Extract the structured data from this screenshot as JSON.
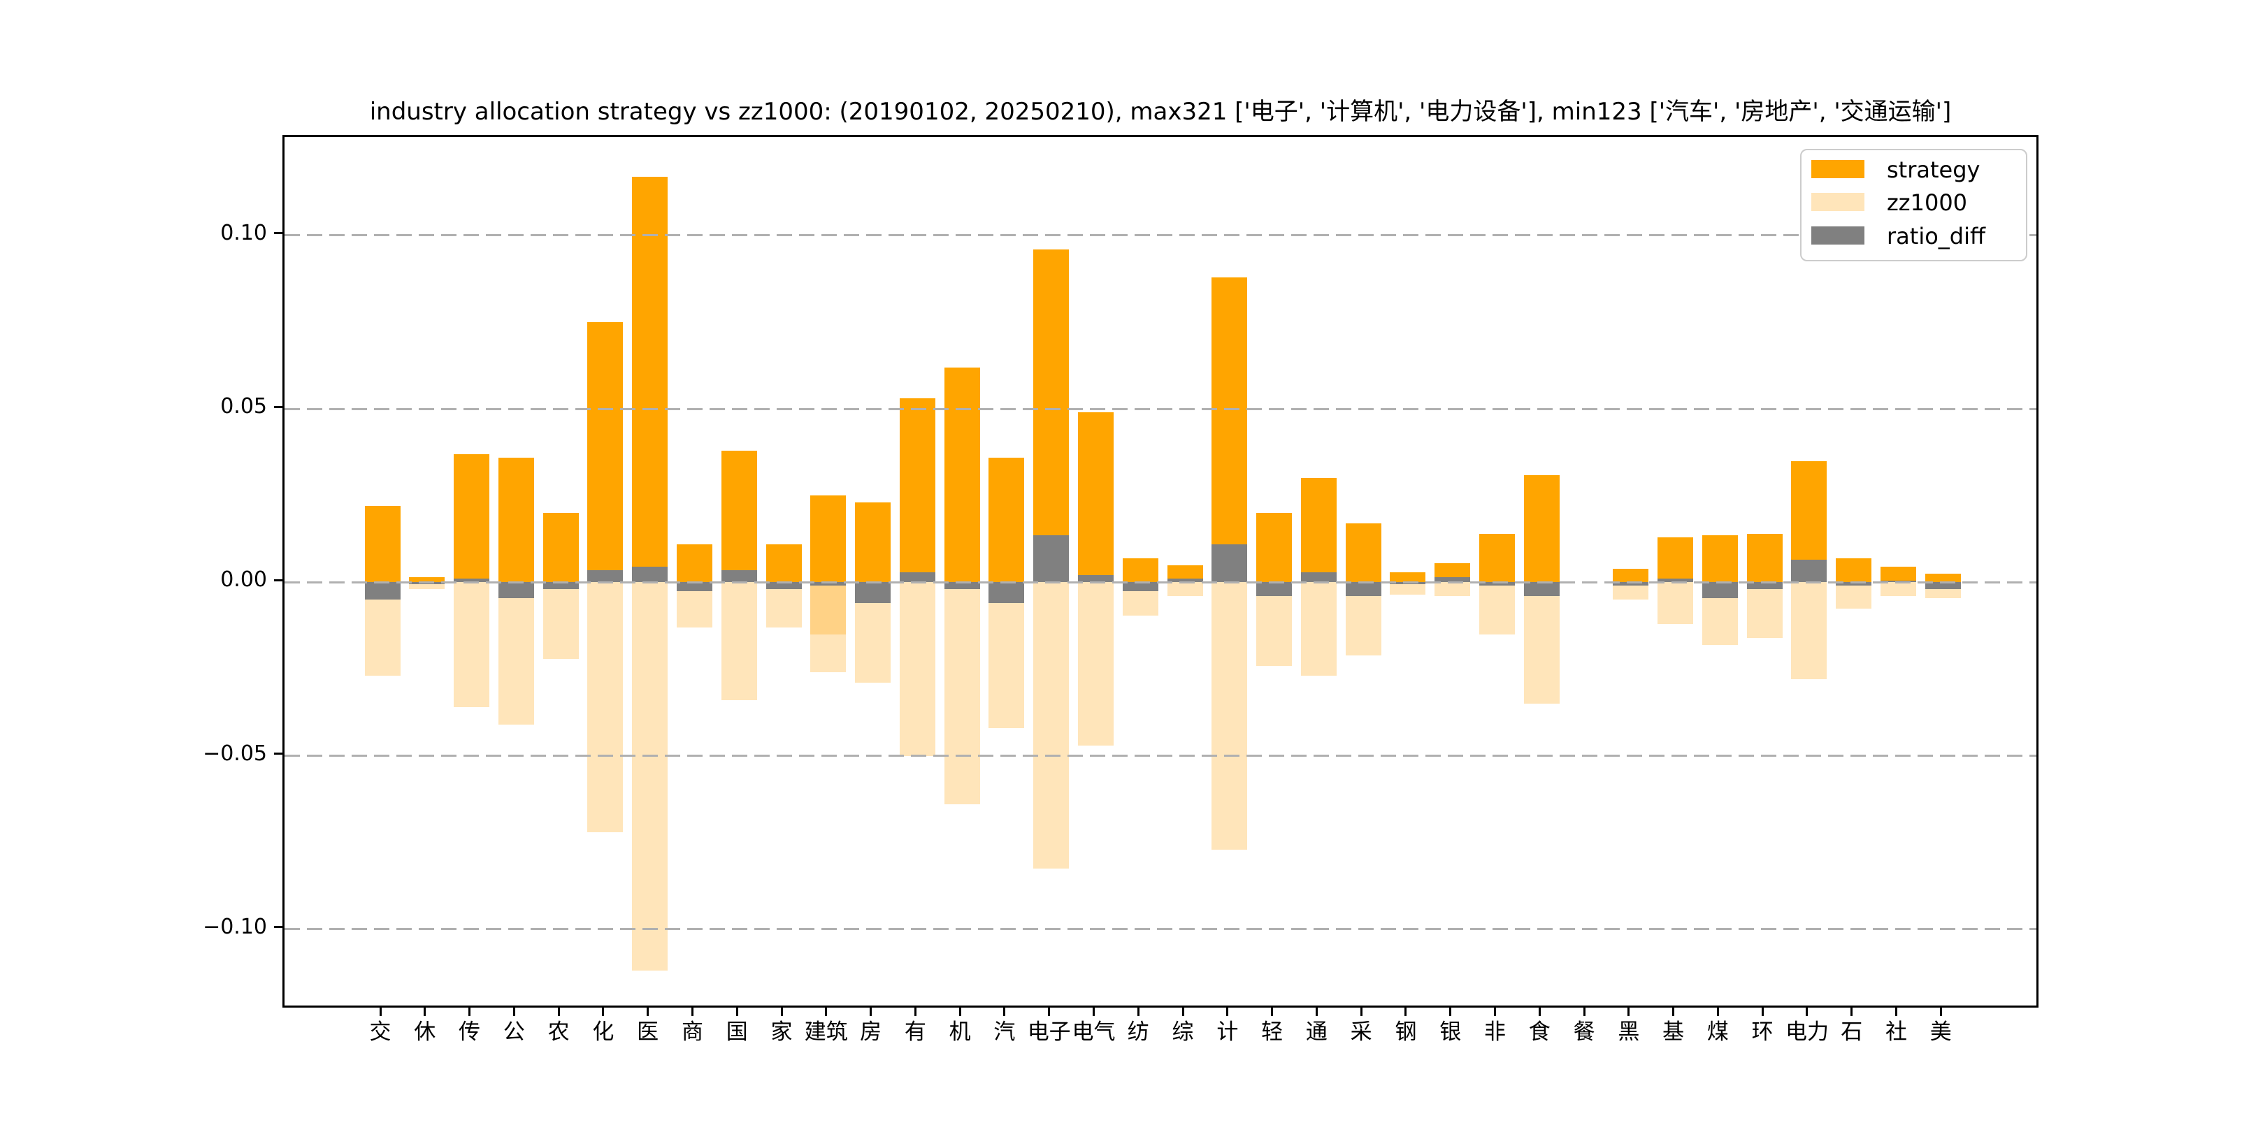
{
  "chart_data": {
    "type": "bar",
    "title": "industry allocation strategy vs zz1000: (20190102, 20250210), max321 ['电子', '计算机', '电力设备'], min123 ['汽车', '房地产', '交通运输']",
    "categories": [
      "交",
      "休",
      "传",
      "公",
      "农",
      "化",
      "医",
      "商",
      "国",
      "家",
      "建筑",
      "房",
      "有",
      "机",
      "汽",
      "电子",
      "电气",
      "纺",
      "综",
      "计",
      "轻",
      "通",
      "采",
      "钢",
      "银",
      "非",
      "食",
      "餐",
      "黑",
      "基",
      "煤",
      "环",
      "电力",
      "石",
      "社",
      "美"
    ],
    "series": [
      {
        "name": "strategy",
        "color": "#FFA500",
        "values": [
          0.022,
          0.0015,
          0.037,
          0.036,
          0.02,
          0.075,
          0.117,
          0.011,
          0.038,
          0.011,
          0.025,
          0.023,
          0.053,
          0.062,
          0.036,
          0.096,
          0.049,
          0.007,
          0.005,
          0.088,
          0.02,
          0.03,
          0.017,
          0.003,
          0.0055,
          0.014,
          0.031,
          0.0,
          0.004,
          0.013,
          0.0135,
          0.014,
          0.035,
          0.007,
          0.0045,
          0.0025
        ]
      },
      {
        "name": "zz1000",
        "color": "#FFE5BA",
        "plotted_mirrored_below_zero": true,
        "values": [
          0.027,
          0.002,
          0.036,
          0.041,
          0.022,
          0.072,
          0.112,
          0.013,
          0.034,
          0.013,
          0.026,
          0.029,
          0.05,
          0.064,
          0.042,
          0.0825,
          0.047,
          0.0095,
          0.004,
          0.077,
          0.024,
          0.027,
          0.021,
          0.0035,
          0.004,
          0.015,
          0.035,
          0.0,
          0.005,
          0.012,
          0.018,
          0.016,
          0.028,
          0.0075,
          0.004,
          0.0045
        ]
      },
      {
        "name": "ratio_diff",
        "color": "#808080",
        "values": [
          -0.005,
          -0.0005,
          0.001,
          -0.0045,
          -0.002,
          0.0035,
          0.0045,
          -0.0025,
          0.0035,
          -0.002,
          -0.001,
          -0.006,
          0.003,
          -0.002,
          -0.006,
          0.0135,
          0.002,
          -0.0025,
          0.001,
          0.011,
          -0.004,
          0.003,
          -0.004,
          -0.0005,
          0.0015,
          -0.001,
          -0.004,
          0.0,
          -0.001,
          0.001,
          -0.0045,
          -0.002,
          0.0065,
          -0.001,
          0.0005,
          -0.002
        ]
      }
    ],
    "zz1000_extra_overlap_bar": {
      "category": "建筑",
      "value": 0.015,
      "overlap_color": "#FFD286"
    },
    "yticks": [
      {
        "label": "0.10",
        "value": 0.1
      },
      {
        "label": "0.05",
        "value": 0.05
      },
      {
        "label": "0.00",
        "value": 0.0
      },
      {
        "label": "−0.05",
        "value": -0.05
      },
      {
        "label": "−0.10",
        "value": -0.1
      }
    ],
    "ylim": [
      -0.1232,
      0.1284
    ],
    "grid": "dashed horizontal gray",
    "legend_position": "upper right",
    "legend_labels": [
      "strategy",
      "zz1000",
      "ratio_diff"
    ]
  }
}
